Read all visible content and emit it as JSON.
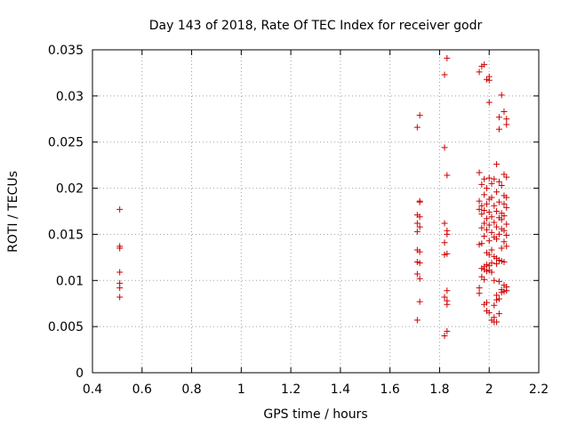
{
  "chart_data": {
    "type": "scatter",
    "title": "Day 143 of 2018, Rate Of TEC Index for receiver godr",
    "xlabel": "GPS time / hours",
    "ylabel": "ROTI / TECUs",
    "xlim": [
      0.4,
      2.2
    ],
    "ylim": [
      0,
      0.035
    ],
    "xticks": [
      {
        "value": 0.4,
        "label": "0.4"
      },
      {
        "value": 0.6,
        "label": "0.6"
      },
      {
        "value": 0.8,
        "label": "0.8"
      },
      {
        "value": 1.0,
        "label": "1"
      },
      {
        "value": 1.2,
        "label": "1.2"
      },
      {
        "value": 1.4,
        "label": "1.4"
      },
      {
        "value": 1.6,
        "label": "1.6"
      },
      {
        "value": 1.8,
        "label": "1.8"
      },
      {
        "value": 2.0,
        "label": "2"
      },
      {
        "value": 2.2,
        "label": "2.2"
      }
    ],
    "yticks": [
      {
        "value": 0,
        "label": "0"
      },
      {
        "value": 0.005,
        "label": "0.005"
      },
      {
        "value": 0.01,
        "label": "0.01"
      },
      {
        "value": 0.015,
        "label": "0.015"
      },
      {
        "value": 0.02,
        "label": "0.02"
      },
      {
        "value": 0.025,
        "label": "0.025"
      },
      {
        "value": 0.03,
        "label": "0.03"
      },
      {
        "value": 0.035,
        "label": "0.035"
      }
    ],
    "grid": true,
    "legend": null,
    "marker": "plus",
    "color": "#cc0000",
    "series": [
      {
        "name": "ROTI",
        "points": [
          [
            0.51,
            0.0177
          ],
          [
            0.51,
            0.0137
          ],
          [
            0.51,
            0.0135
          ],
          [
            0.51,
            0.0109
          ],
          [
            0.51,
            0.0097
          ],
          [
            0.51,
            0.0092
          ],
          [
            0.51,
            0.0082
          ],
          [
            1.71,
            0.0266
          ],
          [
            1.72,
            0.0279
          ],
          [
            1.72,
            0.0186
          ],
          [
            1.72,
            0.0185
          ],
          [
            1.71,
            0.0171
          ],
          [
            1.72,
            0.0169
          ],
          [
            1.71,
            0.0162
          ],
          [
            1.72,
            0.0158
          ],
          [
            1.71,
            0.0153
          ],
          [
            1.71,
            0.0133
          ],
          [
            1.72,
            0.0131
          ],
          [
            1.71,
            0.012
          ],
          [
            1.72,
            0.0119
          ],
          [
            1.71,
            0.0107
          ],
          [
            1.72,
            0.0102
          ],
          [
            1.72,
            0.0077
          ],
          [
            1.71,
            0.0057
          ],
          [
            1.83,
            0.0341
          ],
          [
            1.82,
            0.0323
          ],
          [
            1.82,
            0.0244
          ],
          [
            1.83,
            0.0214
          ],
          [
            1.82,
            0.0162
          ],
          [
            1.83,
            0.0154
          ],
          [
            1.83,
            0.015
          ],
          [
            1.82,
            0.0141
          ],
          [
            1.83,
            0.0129
          ],
          [
            1.82,
            0.0128
          ],
          [
            1.83,
            0.0089
          ],
          [
            1.82,
            0.0082
          ],
          [
            1.83,
            0.0078
          ],
          [
            1.83,
            0.0074
          ],
          [
            1.83,
            0.0045
          ],
          [
            1.82,
            0.004
          ],
          [
            1.96,
            0.0326
          ],
          [
            1.97,
            0.0332
          ],
          [
            1.98,
            0.0334
          ],
          [
            1.99,
            0.0318
          ],
          [
            2.0,
            0.0321
          ],
          [
            2.0,
            0.0317
          ],
          [
            2.05,
            0.0301
          ],
          [
            2.0,
            0.0293
          ],
          [
            2.06,
            0.0283
          ],
          [
            2.04,
            0.0277
          ],
          [
            2.07,
            0.0275
          ],
          [
            2.07,
            0.0269
          ],
          [
            2.04,
            0.0264
          ],
          [
            2.03,
            0.0226
          ],
          [
            1.96,
            0.0217
          ],
          [
            2.06,
            0.0215
          ],
          [
            2.07,
            0.0212
          ],
          [
            1.98,
            0.021
          ],
          [
            2.0,
            0.0211
          ],
          [
            2.02,
            0.021
          ],
          [
            2.04,
            0.0207
          ],
          [
            2.01,
            0.0205
          ],
          [
            1.97,
            0.0204
          ],
          [
            2.05,
            0.0203
          ],
          [
            1.99,
            0.02
          ],
          [
            2.03,
            0.0196
          ],
          [
            1.98,
            0.0193
          ],
          [
            2.06,
            0.0192
          ],
          [
            2.07,
            0.019
          ],
          [
            2.01,
            0.019
          ],
          [
            2.0,
            0.0188
          ],
          [
            1.96,
            0.0186
          ],
          [
            2.04,
            0.0185
          ],
          [
            1.99,
            0.0183
          ],
          [
            2.06,
            0.0183
          ],
          [
            1.97,
            0.0181
          ],
          [
            2.02,
            0.0181
          ],
          [
            2.07,
            0.0179
          ],
          [
            1.96,
            0.0177
          ],
          [
            1.98,
            0.0176
          ],
          [
            2.03,
            0.0175
          ],
          [
            2.0,
            0.0174
          ],
          [
            2.05,
            0.0173
          ],
          [
            1.97,
            0.0172
          ],
          [
            2.06,
            0.017
          ],
          [
            2.01,
            0.0169
          ],
          [
            2.04,
            0.0168
          ],
          [
            1.99,
            0.0167
          ],
          [
            2.05,
            0.0166
          ],
          [
            2.02,
            0.0163
          ],
          [
            1.98,
            0.0162
          ],
          [
            2.07,
            0.0161
          ],
          [
            2.0,
            0.016
          ],
          [
            2.03,
            0.0158
          ],
          [
            1.97,
            0.0157
          ],
          [
            2.05,
            0.0156
          ],
          [
            1.99,
            0.0155
          ],
          [
            2.06,
            0.0154
          ],
          [
            2.01,
            0.0152
          ],
          [
            2.04,
            0.015
          ],
          [
            2.07,
            0.0149
          ],
          [
            1.98,
            0.0148
          ],
          [
            2.02,
            0.0147
          ],
          [
            2.03,
            0.0145
          ],
          [
            2.0,
            0.0143
          ],
          [
            2.06,
            0.0142
          ],
          [
            1.97,
            0.014
          ],
          [
            1.96,
            0.0139
          ],
          [
            2.07,
            0.0137
          ],
          [
            2.05,
            0.0135
          ],
          [
            2.01,
            0.0133
          ],
          [
            1.99,
            0.013
          ],
          [
            2.0,
            0.0128
          ],
          [
            2.02,
            0.0126
          ],
          [
            2.03,
            0.0124
          ],
          [
            2.04,
            0.0122
          ],
          [
            2.05,
            0.0121
          ],
          [
            2.06,
            0.012
          ],
          [
            2.01,
            0.0119
          ],
          [
            2.03,
            0.0118
          ],
          [
            1.99,
            0.0117
          ],
          [
            2.0,
            0.0116
          ],
          [
            1.98,
            0.0115
          ],
          [
            1.97,
            0.0113
          ],
          [
            1.98,
            0.0112
          ],
          [
            2.0,
            0.0111
          ],
          [
            1.99,
            0.011
          ],
          [
            2.01,
            0.0109
          ],
          [
            1.97,
            0.0104
          ],
          [
            1.98,
            0.0101
          ],
          [
            2.02,
            0.01
          ],
          [
            2.04,
            0.0099
          ],
          [
            2.06,
            0.0095
          ],
          [
            2.07,
            0.0093
          ],
          [
            1.96,
            0.0092
          ],
          [
            2.05,
            0.009
          ],
          [
            2.07,
            0.0089
          ],
          [
            2.06,
            0.0088
          ],
          [
            2.05,
            0.0087
          ],
          [
            1.96,
            0.0086
          ],
          [
            2.03,
            0.0084
          ],
          [
            2.04,
            0.008
          ],
          [
            2.03,
            0.0079
          ],
          [
            1.99,
            0.0076
          ],
          [
            1.98,
            0.0074
          ],
          [
            2.02,
            0.0073
          ],
          [
            1.99,
            0.0067
          ],
          [
            2.0,
            0.0065
          ],
          [
            2.04,
            0.0064
          ],
          [
            2.02,
            0.006
          ],
          [
            2.01,
            0.0057
          ],
          [
            2.02,
            0.0055
          ],
          [
            2.03,
            0.0055
          ]
        ]
      }
    ]
  }
}
